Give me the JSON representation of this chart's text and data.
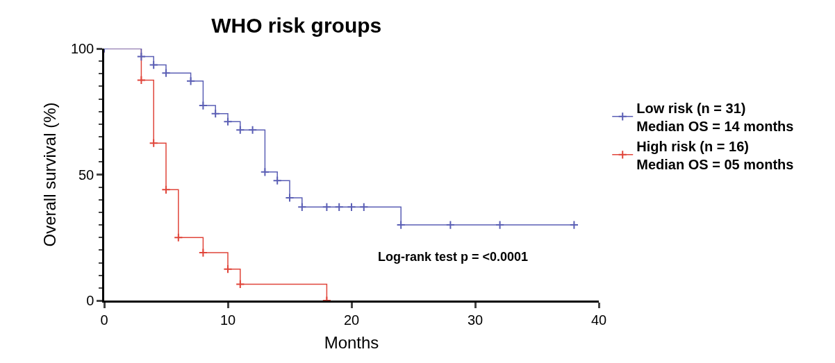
{
  "chart_data": {
    "type": "step",
    "title": "WHO risk groups",
    "xlabel": "Months",
    "ylabel": "Overall survival (%)",
    "xlim": [
      0,
      40
    ],
    "xticks": [
      0,
      10,
      20,
      30,
      40
    ],
    "ylim": [
      0,
      100
    ],
    "yticks": [
      0,
      50,
      100
    ],
    "legend": "right",
    "marker": "cross",
    "grid": false,
    "series": [
      {
        "name": "Low risk (n = 31)\nMedian OS = 14 months",
        "color": "#5b5fb5",
        "x": [
          0,
          3,
          4,
          5,
          7,
          8,
          9,
          10,
          11,
          12,
          13,
          14,
          15,
          16,
          18,
          19,
          20,
          21,
          24,
          28,
          32,
          38
        ],
        "values": [
          100,
          96.8,
          93.5,
          90.3,
          87.1,
          77.4,
          74.2,
          71,
          67.7,
          67.7,
          51,
          47.6,
          40.8,
          37.1,
          37.1,
          37.1,
          37.1,
          37.1,
          30,
          30,
          30,
          30
        ]
      },
      {
        "name": "High risk (n = 16)\nMedian OS = 05 months",
        "color": "#e0453a",
        "x": [
          0,
          3,
          4,
          5,
          6,
          8,
          10,
          11,
          18
        ],
        "values": [
          100,
          87.5,
          62.5,
          44,
          25,
          19,
          12.5,
          6.5,
          0
        ]
      }
    ],
    "annotations": [
      "Log-rank test p = <0.0001"
    ]
  }
}
